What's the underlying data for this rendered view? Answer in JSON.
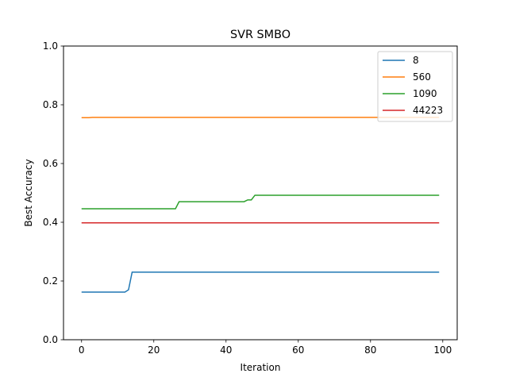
{
  "chart_data": {
    "type": "line",
    "title": "SVR SMBO",
    "xlabel": "Iteration",
    "ylabel": "Best Accuracy",
    "xlim": [
      -5,
      104
    ],
    "ylim": [
      0,
      1.0
    ],
    "x_ticks": [
      0,
      20,
      40,
      60,
      80,
      100
    ],
    "y_ticks": [
      0.0,
      0.2,
      0.4,
      0.6,
      0.8,
      1.0
    ],
    "x_tick_labels": [
      "0",
      "20",
      "40",
      "60",
      "80",
      "100"
    ],
    "y_tick_labels": [
      "0.0",
      "0.2",
      "0.4",
      "0.6",
      "0.8",
      "1.0"
    ],
    "grid": false,
    "legend_position": "top-right",
    "series": [
      {
        "name": "8",
        "color": "#1f77b4",
        "points": [
          [
            0,
            0.162
          ],
          [
            12,
            0.162
          ],
          [
            13,
            0.17
          ],
          [
            14,
            0.23
          ],
          [
            99,
            0.23
          ]
        ]
      },
      {
        "name": "560",
        "color": "#ff7f0e",
        "points": [
          [
            0,
            0.756
          ],
          [
            2,
            0.756
          ],
          [
            3,
            0.757
          ],
          [
            99,
            0.757
          ]
        ]
      },
      {
        "name": "1090",
        "color": "#2ca02c",
        "points": [
          [
            0,
            0.446
          ],
          [
            26,
            0.446
          ],
          [
            27,
            0.47
          ],
          [
            45,
            0.47
          ],
          [
            46,
            0.476
          ],
          [
            47,
            0.476
          ],
          [
            48,
            0.492
          ],
          [
            99,
            0.492
          ]
        ]
      },
      {
        "name": "44223",
        "color": "#d62728",
        "points": [
          [
            0,
            0.398
          ],
          [
            99,
            0.398
          ]
        ]
      }
    ]
  }
}
